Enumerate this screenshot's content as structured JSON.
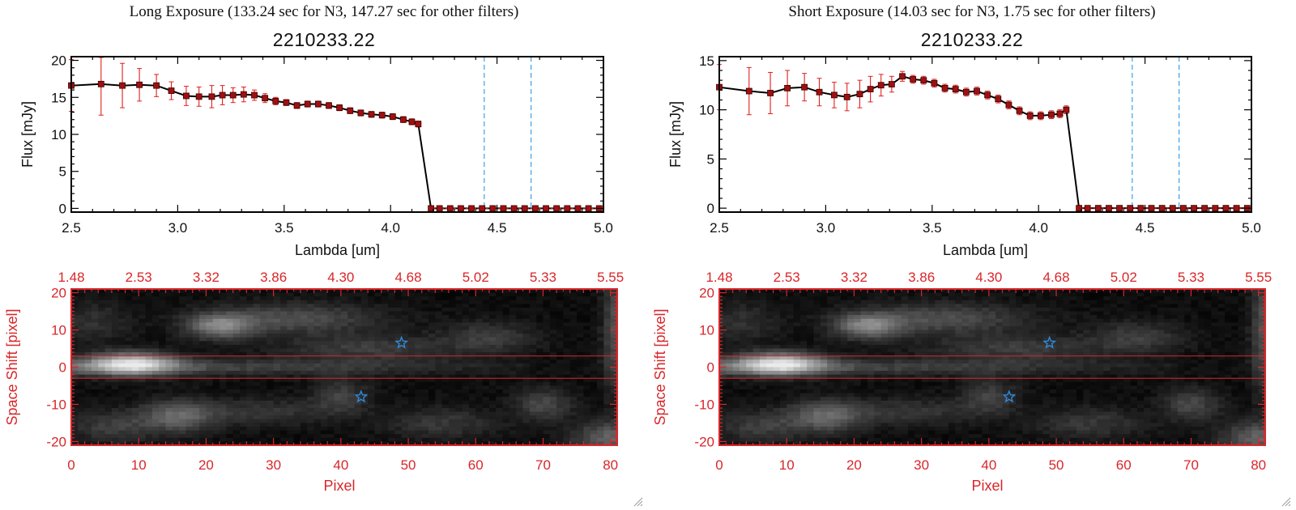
{
  "colors": {
    "spectrum_line": "#000000",
    "marker": "#a01010",
    "error_bar": "#e02020",
    "vertical_marker": "#3aa0e8",
    "image_axis": "#d8262a",
    "star": "#2e8fe6"
  },
  "panels": [
    {
      "header": "Long Exposure (133.24 sec for N3, 147.27 sec for other filters)",
      "title": "2210233.22",
      "chart_data": [
        {
          "type": "line",
          "xlabel": "Lambda [um]",
          "ylabel": "Flux [mJy]",
          "xlim": [
            2.5,
            5.0
          ],
          "ylim": [
            -0.5,
            20.5
          ],
          "x_ticks": [
            2.5,
            3.0,
            3.5,
            4.0,
            4.5,
            5.0
          ],
          "x_tick_labels": [
            "2.5",
            "3.0",
            "3.5",
            "4.0",
            "4.5",
            "5.0"
          ],
          "y_ticks": [
            0,
            5,
            10,
            15,
            20
          ],
          "y_tick_labels": [
            "0",
            "5",
            "10",
            "15",
            "20"
          ],
          "vertical_lines": [
            4.44,
            4.66
          ],
          "series": [
            {
              "x": [
                2.5,
                2.64,
                2.74,
                2.82,
                2.9,
                2.97,
                3.04,
                3.1,
                3.16,
                3.21,
                3.26,
                3.31,
                3.36,
                3.41,
                3.46,
                3.51,
                3.56,
                3.61,
                3.66,
                3.71,
                3.76,
                3.81,
                3.86,
                3.91,
                3.96,
                4.01,
                4.06,
                4.1,
                4.13,
                4.19,
                4.23,
                4.28,
                4.33,
                4.38,
                4.43,
                4.48,
                4.53,
                4.58,
                4.63,
                4.68,
                4.73,
                4.78,
                4.83,
                4.88,
                4.93,
                4.98
              ],
              "y": [
                16.6,
                16.8,
                16.6,
                16.7,
                16.6,
                15.9,
                15.2,
                15.1,
                15.1,
                15.3,
                15.3,
                15.4,
                15.3,
                14.9,
                14.5,
                14.3,
                13.9,
                14.1,
                14.1,
                13.9,
                13.6,
                13.2,
                12.9,
                12.7,
                12.6,
                12.4,
                12.0,
                11.7,
                11.4,
                0,
                0,
                0,
                0,
                0,
                0,
                0,
                0,
                0,
                0,
                0,
                0,
                0,
                0,
                0,
                0,
                0
              ],
              "yerr": [
                3.5,
                4.2,
                3.0,
                2.2,
                1.5,
                1.2,
                1.3,
                1.3,
                1.5,
                1.3,
                1.0,
                1.0,
                0.7,
                0.6,
                0.5,
                0.4,
                0.4,
                0.4,
                0.4,
                0.4,
                0.4,
                0.4,
                0.4,
                0.4,
                0.4,
                0.4,
                0.4,
                0.4,
                0.4,
                0.2,
                0.2,
                0.2,
                0.2,
                0.2,
                0.2,
                0.2,
                0.2,
                0.2,
                0.2,
                0.2,
                0.2,
                0.2,
                0.2,
                0.2,
                0.2,
                0.2
              ]
            }
          ]
        },
        {
          "type": "heatmap",
          "xlabel": "Pixel",
          "ylabel": "Space Shift [pixel]",
          "xlim": [
            0,
            81
          ],
          "ylim": [
            -21,
            21
          ],
          "x_ticks": [
            0,
            10,
            20,
            30,
            40,
            50,
            60,
            70,
            80
          ],
          "x_tick_labels": [
            "0",
            "10",
            "20",
            "30",
            "40",
            "50",
            "60",
            "70",
            "80"
          ],
          "y_ticks": [
            -20,
            -10,
            0,
            10,
            20
          ],
          "y_tick_labels": [
            "-20",
            "-10",
            "0",
            "10",
            "20"
          ],
          "top_ticks": [
            0,
            10,
            20,
            30,
            40,
            50,
            60,
            70,
            80
          ],
          "top_tick_labels": [
            "1.48",
            "2.53",
            "3.32",
            "3.86",
            "4.30",
            "4.68",
            "5.02",
            "5.33",
            "5.55"
          ],
          "horizontal_lines": [
            3,
            -3
          ],
          "stars": [
            {
              "x": 49,
              "y": 6.5
            },
            {
              "x": 43,
              "y": -8
            }
          ]
        }
      ]
    },
    {
      "header": "Short Exposure (14.03 sec for N3, 1.75 sec for other filters)",
      "title": "2210233.22",
      "chart_data": [
        {
          "type": "line",
          "xlabel": "Lambda [um]",
          "ylabel": "Flux [mJy]",
          "xlim": [
            2.5,
            5.0
          ],
          "ylim": [
            -0.4,
            15.4
          ],
          "x_ticks": [
            2.5,
            3.0,
            3.5,
            4.0,
            4.5,
            5.0
          ],
          "x_tick_labels": [
            "2.5",
            "3.0",
            "3.5",
            "4.0",
            "4.5",
            "5.0"
          ],
          "y_ticks": [
            0,
            5,
            10,
            15
          ],
          "y_tick_labels": [
            "0",
            "5",
            "10",
            "15"
          ],
          "vertical_lines": [
            4.44,
            4.66
          ],
          "series": [
            {
              "x": [
                2.5,
                2.64,
                2.74,
                2.82,
                2.9,
                2.97,
                3.04,
                3.1,
                3.16,
                3.21,
                3.26,
                3.31,
                3.36,
                3.41,
                3.46,
                3.51,
                3.56,
                3.61,
                3.66,
                3.71,
                3.76,
                3.81,
                3.86,
                3.91,
                3.96,
                4.01,
                4.06,
                4.1,
                4.13,
                4.19,
                4.23,
                4.28,
                4.33,
                4.38,
                4.43,
                4.48,
                4.53,
                4.58,
                4.63,
                4.68,
                4.73,
                4.78,
                4.83,
                4.88,
                4.93,
                4.98
              ],
              "y": [
                12.3,
                11.9,
                11.7,
                12.2,
                12.3,
                11.8,
                11.5,
                11.3,
                11.6,
                12.1,
                12.5,
                12.6,
                13.4,
                13.1,
                13.0,
                12.7,
                12.2,
                12.1,
                11.8,
                11.9,
                11.5,
                11.1,
                10.5,
                9.9,
                9.4,
                9.4,
                9.5,
                9.6,
                10.0,
                0,
                0,
                0,
                0,
                0,
                0,
                0,
                0,
                0,
                0,
                0,
                0,
                0,
                0,
                0,
                0,
                0
              ],
              "yerr": [
                2.3,
                2.4,
                2.1,
                1.8,
                1.4,
                1.4,
                1.3,
                1.4,
                1.4,
                1.3,
                1.1,
                0.8,
                0.5,
                0.4,
                0.4,
                0.4,
                0.4,
                0.4,
                0.4,
                0.4,
                0.4,
                0.4,
                0.4,
                0.4,
                0.4,
                0.4,
                0.4,
                0.4,
                0.4,
                0.2,
                0.2,
                0.2,
                0.2,
                0.2,
                0.2,
                0.2,
                0.2,
                0.2,
                0.2,
                0.2,
                0.2,
                0.2,
                0.2,
                0.2,
                0.2,
                0.2
              ]
            }
          ]
        },
        {
          "type": "heatmap",
          "xlabel": "Pixel",
          "ylabel": "Space Shift [pixel]",
          "xlim": [
            0,
            81
          ],
          "ylim": [
            -21,
            21
          ],
          "x_ticks": [
            0,
            10,
            20,
            30,
            40,
            50,
            60,
            70,
            80
          ],
          "x_tick_labels": [
            "0",
            "10",
            "20",
            "30",
            "40",
            "50",
            "60",
            "70",
            "80"
          ],
          "y_ticks": [
            -20,
            -10,
            0,
            10,
            20
          ],
          "y_tick_labels": [
            "-20",
            "-10",
            "0",
            "10",
            "20"
          ],
          "top_ticks": [
            0,
            10,
            20,
            30,
            40,
            50,
            60,
            70,
            80
          ],
          "top_tick_labels": [
            "1.48",
            "2.53",
            "3.32",
            "3.86",
            "4.30",
            "4.68",
            "5.02",
            "5.33",
            "5.55"
          ],
          "horizontal_lines": [
            3,
            -3
          ],
          "stars": [
            {
              "x": 49,
              "y": 6.5
            },
            {
              "x": 43,
              "y": -8
            }
          ]
        }
      ]
    }
  ]
}
